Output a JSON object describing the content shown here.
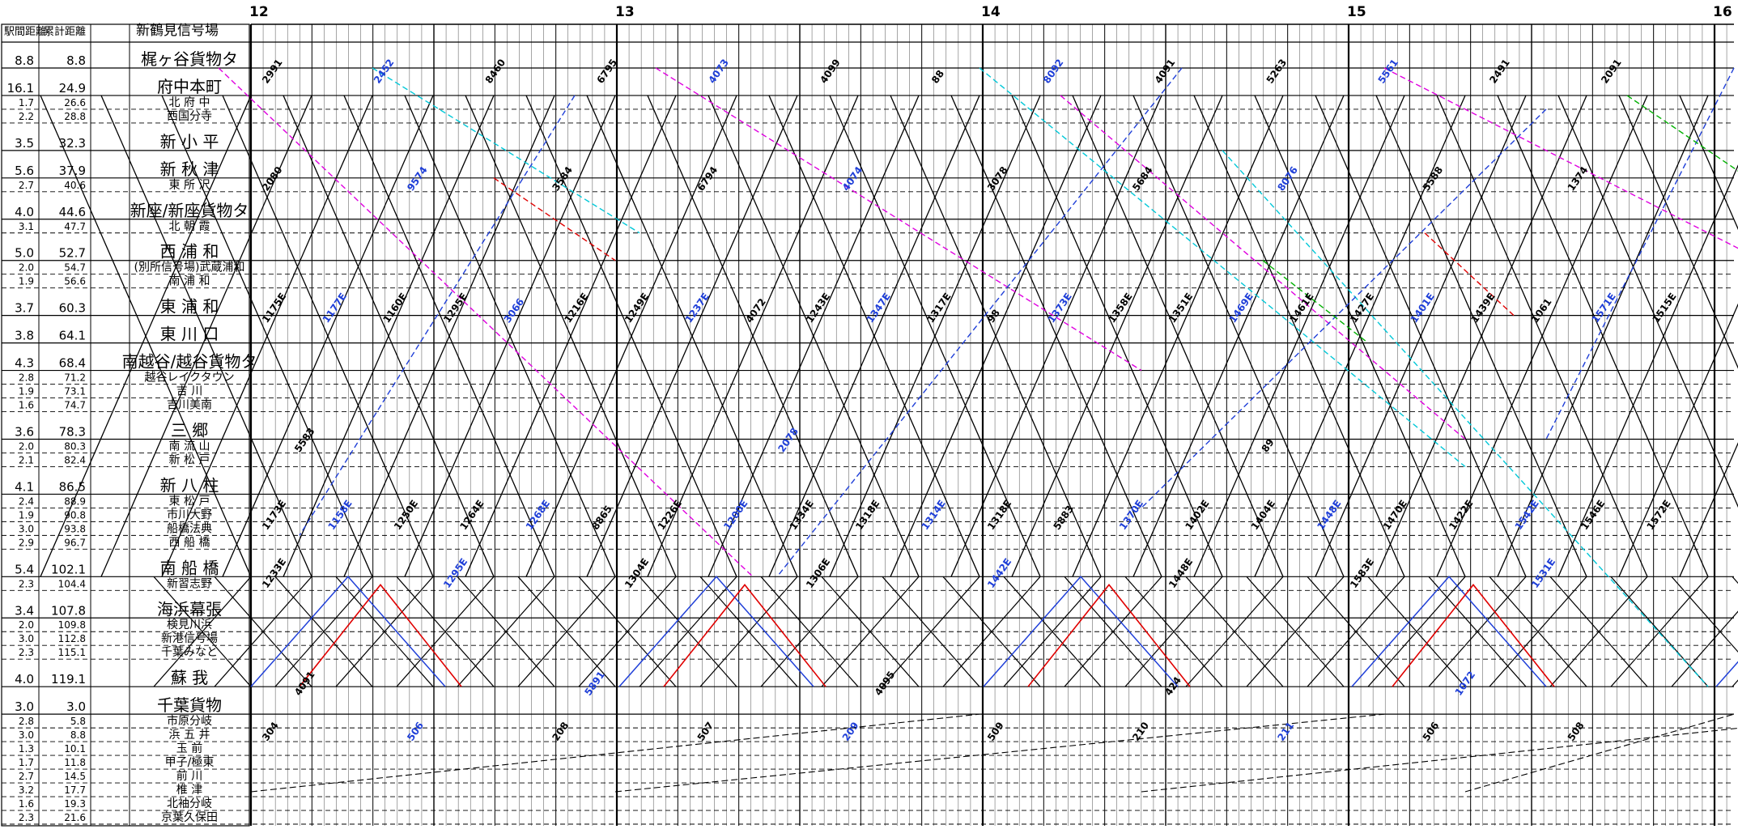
{
  "header": {
    "col_interval": "駅間距離",
    "col_cumulative": "累計距離",
    "col_origin": "新鶴見信号場"
  },
  "hours": [
    "12",
    "13",
    "14",
    "15",
    "16"
  ],
  "stations": [
    {
      "interval": "8.8",
      "cumulative": "8.8",
      "name": "梶ヶ谷貨物タ",
      "major": true
    },
    {
      "interval": "16.1",
      "cumulative": "24.9",
      "name": "府中本町",
      "major": true
    },
    {
      "interval": "1.7",
      "cumulative": "26.6",
      "name": "北 府 中",
      "major": false
    },
    {
      "interval": "2.2",
      "cumulative": "28.8",
      "name": "西国分寺",
      "major": false
    },
    {
      "interval": "3.5",
      "cumulative": "32.3",
      "name": "新 小 平",
      "major": true
    },
    {
      "interval": "5.6",
      "cumulative": "37.9",
      "name": "新 秋 津",
      "major": true
    },
    {
      "interval": "2.7",
      "cumulative": "40.6",
      "name": "東 所 沢",
      "major": false
    },
    {
      "interval": "4.0",
      "cumulative": "44.6",
      "name": "新座/新座貨物タ",
      "major": true
    },
    {
      "interval": "3.1",
      "cumulative": "47.7",
      "name": "北 朝 霞",
      "major": false
    },
    {
      "interval": "5.0",
      "cumulative": "52.7",
      "name": "西 浦 和",
      "major": true
    },
    {
      "interval": "2.0",
      "cumulative": "54.7",
      "name": "(別所信号場)武蔵浦和",
      "major": false
    },
    {
      "interval": "1.9",
      "cumulative": "56.6",
      "name": "南 浦 和",
      "major": false
    },
    {
      "interval": "3.7",
      "cumulative": "60.3",
      "name": "東 浦 和",
      "major": true
    },
    {
      "interval": "3.8",
      "cumulative": "64.1",
      "name": "東 川 口",
      "major": true
    },
    {
      "interval": "4.3",
      "cumulative": "68.4",
      "name": "南越谷/越谷貨物タ",
      "major": true
    },
    {
      "interval": "2.8",
      "cumulative": "71.2",
      "name": "越谷レイクタウン",
      "major": false
    },
    {
      "interval": "1.9",
      "cumulative": "73.1",
      "name": "吉 川",
      "major": false
    },
    {
      "interval": "1.6",
      "cumulative": "74.7",
      "name": "吉川美南",
      "major": false
    },
    {
      "interval": "3.6",
      "cumulative": "78.3",
      "name": "三 郷",
      "major": true
    },
    {
      "interval": "2.0",
      "cumulative": "80.3",
      "name": "南 流 山",
      "major": false
    },
    {
      "interval": "2.1",
      "cumulative": "82.4",
      "name": "新 松 戸",
      "major": false
    },
    {
      "interval": "4.1",
      "cumulative": "86.5",
      "name": "新 八 柱",
      "major": true
    },
    {
      "interval": "2.4",
      "cumulative": "88.9",
      "name": "東 松 戸",
      "major": false
    },
    {
      "interval": "1.9",
      "cumulative": "90.8",
      "name": "市川大野",
      "major": false
    },
    {
      "interval": "3.0",
      "cumulative": "93.8",
      "name": "船橋法典",
      "major": false
    },
    {
      "interval": "2.9",
      "cumulative": "96.7",
      "name": "西 船 橋",
      "major": false
    },
    {
      "interval": "5.4",
      "cumulative": "102.1",
      "name": "南 船 橋",
      "major": true
    },
    {
      "interval": "2.3",
      "cumulative": "104.4",
      "name": "新習志野",
      "major": false
    },
    {
      "interval": "3.4",
      "cumulative": "107.8",
      "name": "海浜幕張",
      "major": true
    },
    {
      "interval": "2.0",
      "cumulative": "109.8",
      "name": "検見川浜",
      "major": false
    },
    {
      "interval": "3.0",
      "cumulative": "112.8",
      "name": "新港信号場",
      "major": false
    },
    {
      "interval": "2.3",
      "cumulative": "115.1",
      "name": "千葉みなと",
      "major": false
    },
    {
      "interval": "4.0",
      "cumulative": "119.1",
      "name": "蘇 我",
      "major": true
    },
    {
      "interval": "3.0",
      "cumulative": "3.0",
      "name": "千葉貨物",
      "major": true
    },
    {
      "interval": "2.8",
      "cumulative": "5.8",
      "name": "市原分岐",
      "major": false
    },
    {
      "interval": "3.0",
      "cumulative": "8.8",
      "name": "浜 五 井",
      "major": false
    },
    {
      "interval": "1.3",
      "cumulative": "10.1",
      "name": "玉 前",
      "major": false
    },
    {
      "interval": "1.7",
      "cumulative": "11.8",
      "name": "甲子/極東",
      "major": false
    },
    {
      "interval": "2.7",
      "cumulative": "14.5",
      "name": "前 川",
      "major": false
    },
    {
      "interval": "3.2",
      "cumulative": "17.7",
      "name": "椎 津",
      "major": false
    },
    {
      "interval": "1.6",
      "cumulative": "19.3",
      "name": "北袖分岐",
      "major": false
    },
    {
      "interval": "2.3",
      "cumulative": "21.6",
      "name": "京葉久保田",
      "major": false
    }
  ],
  "train_labels": [
    "2991",
    "2452",
    "8460",
    "6795",
    "4073",
    "4099",
    "88",
    "8092",
    "4091",
    "5263",
    "5561",
    "2491",
    "2091",
    "2080",
    "9574",
    "3584",
    "6794",
    "4074",
    "3078",
    "5684",
    "8076",
    "5588",
    "1374",
    "1175E",
    "1177E",
    "1160E",
    "1295E",
    "3066",
    "1216E",
    "1249E",
    "1237E",
    "4072",
    "1243E",
    "1347E",
    "1317E",
    "98",
    "1373E",
    "1358E",
    "1351E",
    "1469E",
    "1461E",
    "1427E",
    "1401E",
    "1439E",
    "1061",
    "1571E",
    "1515E",
    "5583",
    "2078",
    "89",
    "1173E",
    "1158E",
    "1250E",
    "1264E",
    "1268E",
    "8865",
    "1226E",
    "1200E",
    "1334E",
    "1318E",
    "1314E",
    "1318E",
    "5883",
    "1370E",
    "1402E",
    "1404E",
    "1448E",
    "1470E",
    "1422E",
    "1542E",
    "1546E",
    "1572E",
    "1233E",
    "1295E",
    "1304E",
    "1306E",
    "1442E",
    "1448E",
    "1583E",
    "1531E",
    "4091",
    "5891",
    "4095",
    "424",
    "1072",
    "304",
    "506",
    "208",
    "507",
    "209",
    "509",
    "210",
    "211",
    "506",
    "508"
  ],
  "colors": {
    "grid": "#000000",
    "passenger": "#000000",
    "blue_freight": "#1f3fd8",
    "magenta_freight": "#e000e0",
    "cyan_freight": "#00c8d8",
    "red_freight": "#e00000",
    "green_freight": "#00b000"
  }
}
